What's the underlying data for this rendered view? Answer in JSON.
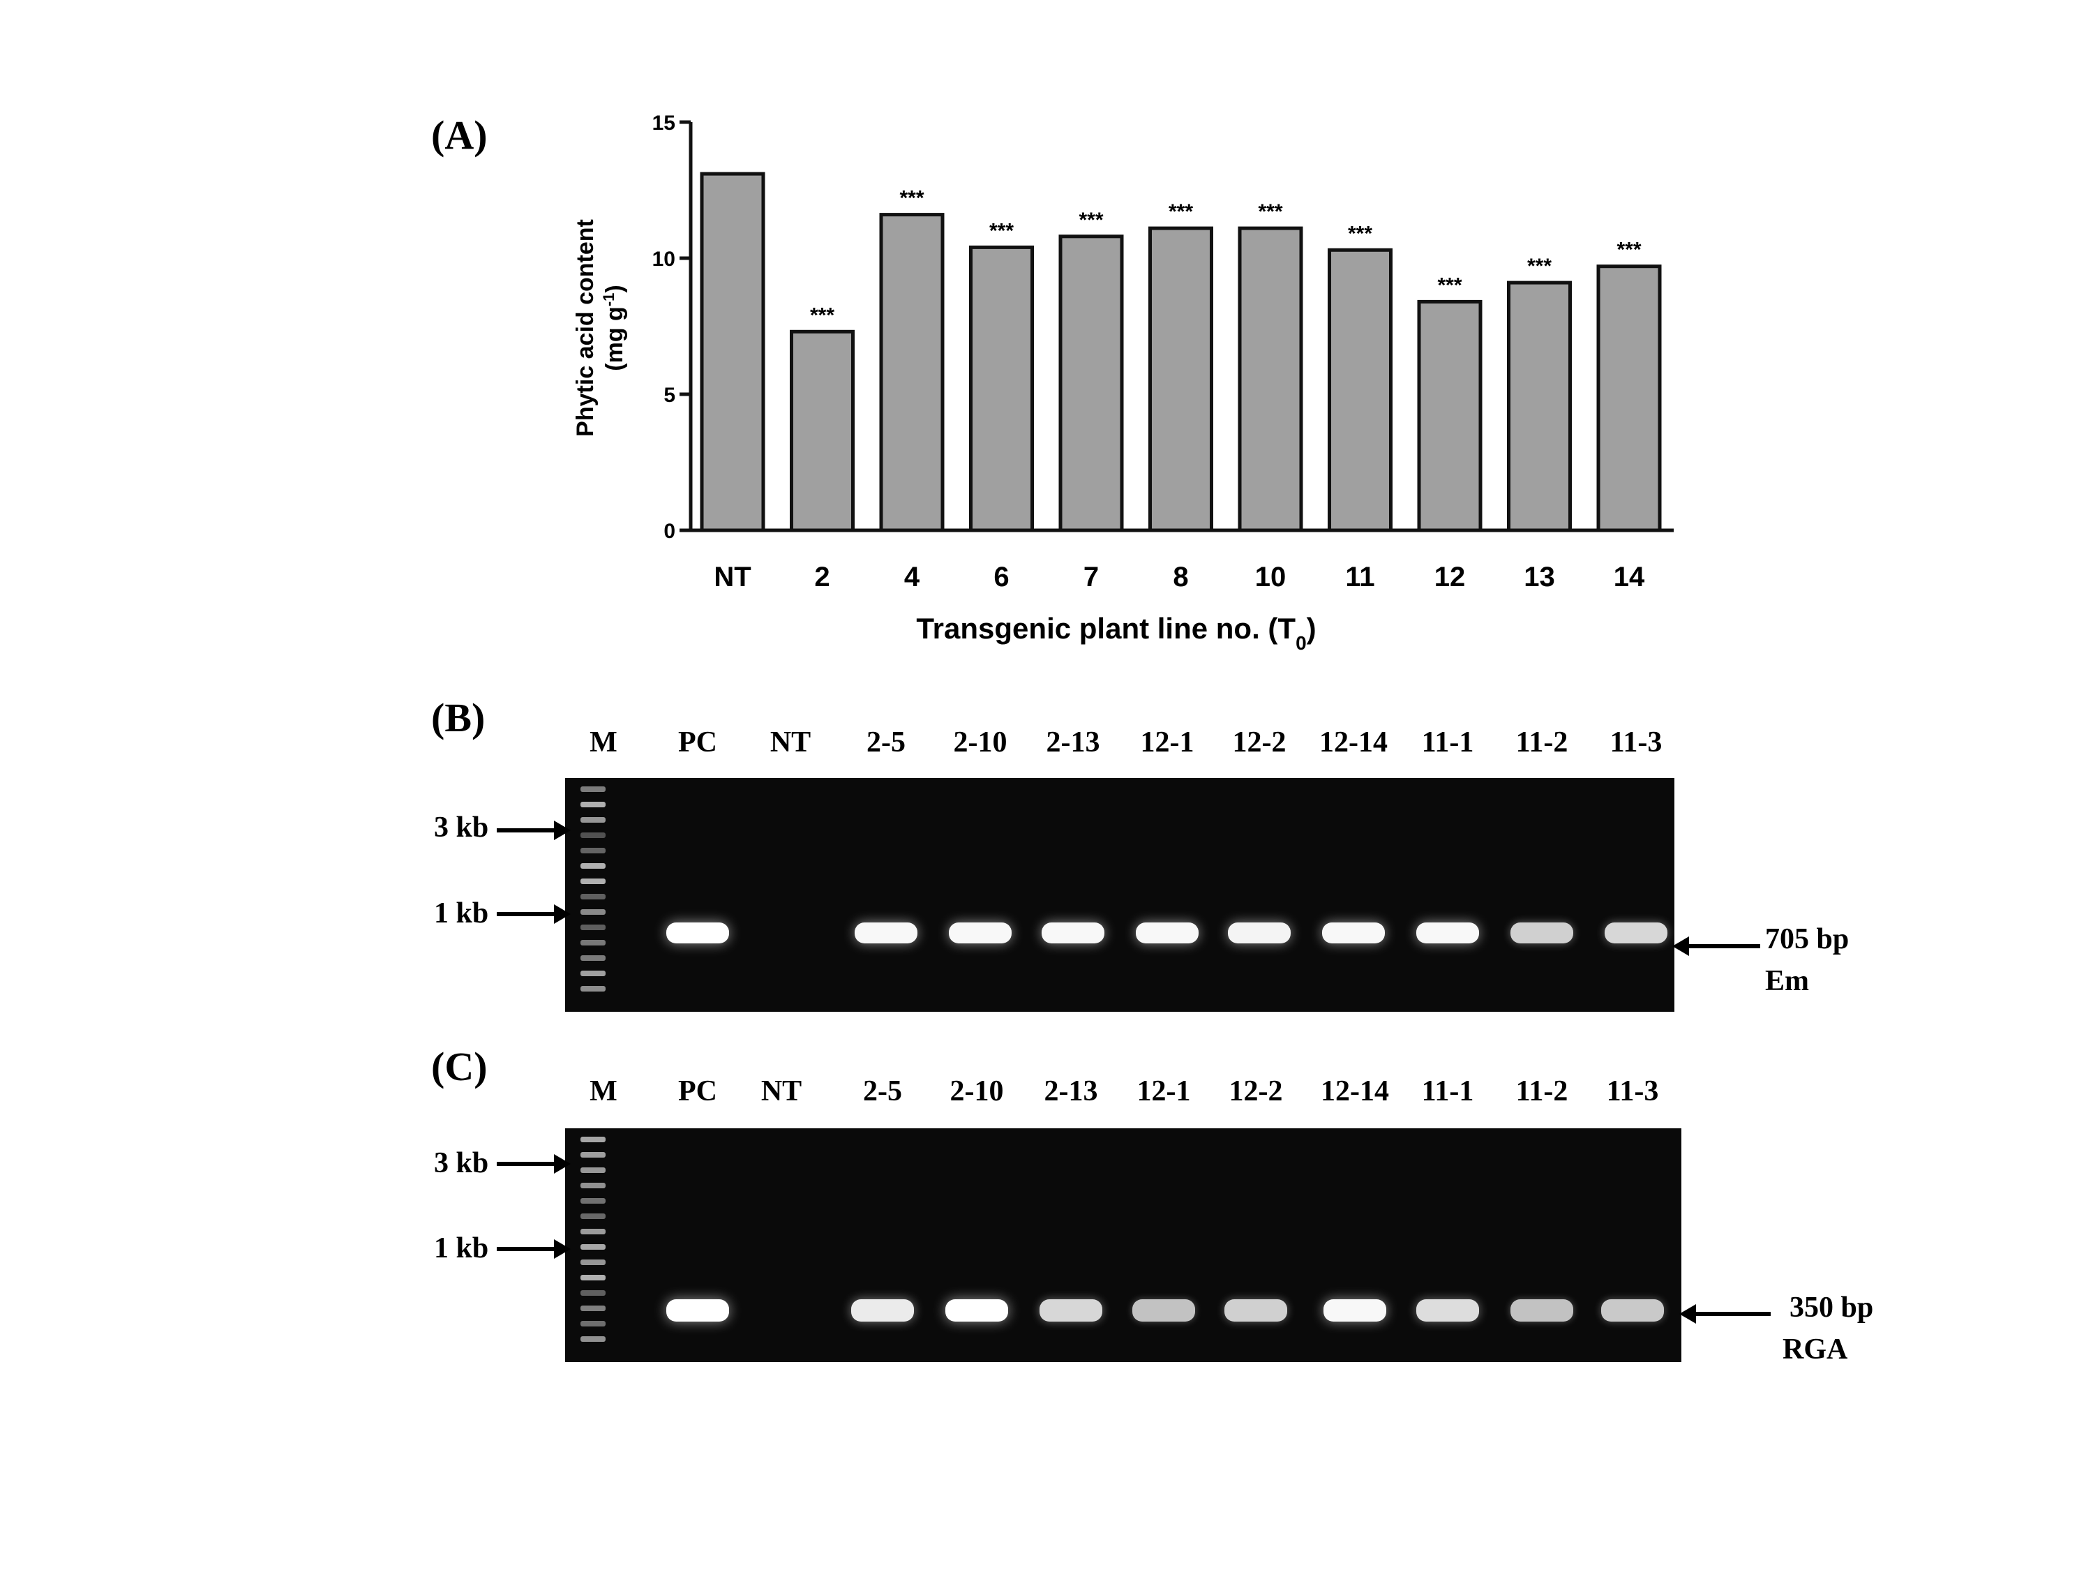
{
  "panels": {
    "a": "(A)",
    "b": "(B)",
    "c": "(C)"
  },
  "chart_data": {
    "type": "bar",
    "categories": [
      "NT",
      "2",
      "4",
      "6",
      "7",
      "8",
      "10",
      "11",
      "12",
      "13",
      "14"
    ],
    "values": [
      13.1,
      7.3,
      11.6,
      10.4,
      10.8,
      11.1,
      11.1,
      10.3,
      8.4,
      9.1,
      9.7
    ],
    "significance": [
      "",
      "***",
      "***",
      "***",
      "***",
      "***",
      "***",
      "***",
      "***",
      "***",
      "***"
    ],
    "ylabel_line1": "Phytic acid content",
    "ylabel_line2_prefix": "(mg g",
    "ylabel_line2_sup": "-1",
    "ylabel_line2_suffix": ")",
    "xlabel_prefix": "Transgenic plant line no. (T",
    "xlabel_sub": "0",
    "xlabel_suffix": ")",
    "ylim": [
      0,
      15
    ],
    "yticks": [
      0,
      5,
      10,
      15
    ],
    "bar_color": "#a0a0a0"
  },
  "gel_b": {
    "lanes": [
      "M",
      "PC",
      "NT",
      "2-5",
      "2-10",
      "2-13",
      "12-1",
      "12-2",
      "12-14",
      "11-1",
      "11-2",
      "11-3"
    ],
    "band_intensity": [
      null,
      1.0,
      0,
      0.95,
      0.95,
      0.95,
      0.95,
      0.92,
      0.95,
      0.95,
      0.65,
      0.7
    ],
    "marker_3kb": "3 kb",
    "marker_1kb": "1 kb",
    "product_size": "705 bp",
    "product_name": "Em"
  },
  "gel_c": {
    "lanes": [
      "M",
      "PC",
      "NT",
      "2-5",
      "2-10",
      "2-13",
      "12-1",
      "12-2",
      "12-14",
      "11-1",
      "11-2",
      "11-3"
    ],
    "band_intensity": [
      null,
      1.0,
      0,
      0.85,
      1.0,
      0.7,
      0.55,
      0.65,
      0.95,
      0.75,
      0.55,
      0.6
    ],
    "marker_3kb": "3 kb",
    "marker_1kb": "1 kb",
    "product_size": "350 bp",
    "product_name": "RGA"
  }
}
